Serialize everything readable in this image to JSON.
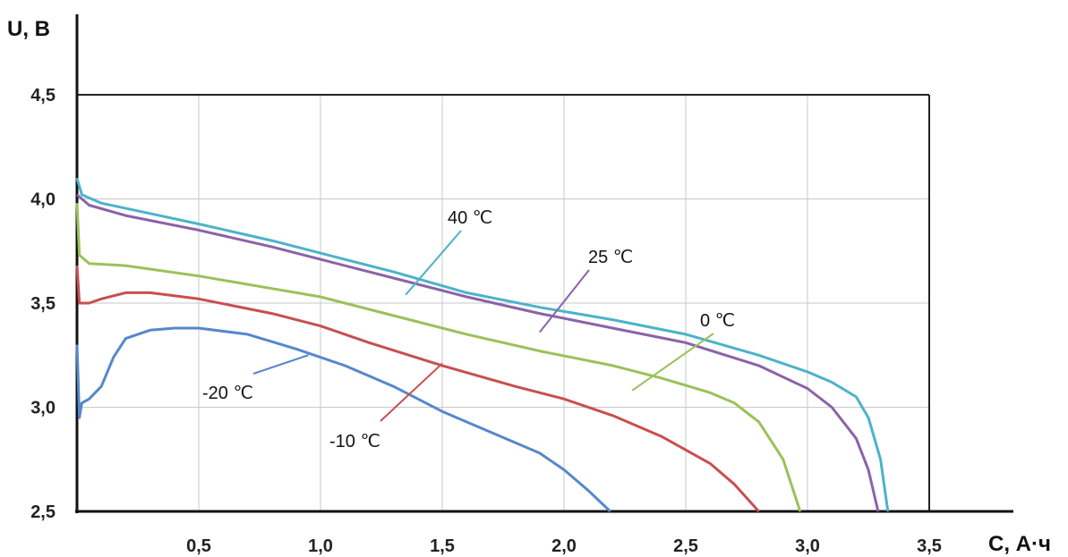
{
  "chart_data": {
    "type": "line",
    "xlabel": "C,  А·ч",
    "ylabel": "U, В",
    "xlim": [
      0,
      3.5
    ],
    "ylim": [
      2.5,
      4.5
    ],
    "x_ticks": [
      "0,5",
      "1,0",
      "1,5",
      "2,0",
      "2,5",
      "3,0",
      "3,5"
    ],
    "y_ticks": [
      "2,5",
      "3,0",
      "3,5",
      "4,0",
      "4,5"
    ],
    "grid": true,
    "series": [
      {
        "name": "40 ℃",
        "color": "#4bb3c9",
        "points": [
          [
            0,
            4.1
          ],
          [
            0.02,
            4.02
          ],
          [
            0.1,
            3.98
          ],
          [
            0.3,
            3.93
          ],
          [
            0.5,
            3.88
          ],
          [
            0.8,
            3.8
          ],
          [
            1.0,
            3.74
          ],
          [
            1.3,
            3.65
          ],
          [
            1.6,
            3.55
          ],
          [
            1.9,
            3.48
          ],
          [
            2.2,
            3.42
          ],
          [
            2.5,
            3.35
          ],
          [
            2.8,
            3.25
          ],
          [
            3.0,
            3.17
          ],
          [
            3.1,
            3.12
          ],
          [
            3.2,
            3.05
          ],
          [
            3.25,
            2.95
          ],
          [
            3.3,
            2.75
          ],
          [
            3.33,
            2.5
          ]
        ],
        "label_anchor": [
          1.35,
          3.54
        ]
      },
      {
        "name": "25 ℃",
        "color": "#8a63a8",
        "points": [
          [
            0,
            4.02
          ],
          [
            0.05,
            3.97
          ],
          [
            0.2,
            3.92
          ],
          [
            0.5,
            3.85
          ],
          [
            0.8,
            3.77
          ],
          [
            1.0,
            3.71
          ],
          [
            1.3,
            3.62
          ],
          [
            1.6,
            3.53
          ],
          [
            1.9,
            3.45
          ],
          [
            2.2,
            3.38
          ],
          [
            2.5,
            3.31
          ],
          [
            2.8,
            3.2
          ],
          [
            3.0,
            3.09
          ],
          [
            3.1,
            3.0
          ],
          [
            3.2,
            2.85
          ],
          [
            3.25,
            2.7
          ],
          [
            3.29,
            2.5
          ]
        ],
        "label_anchor": [
          1.9,
          3.36
        ]
      },
      {
        "name": "0 ℃",
        "color": "#9bc15a",
        "points": [
          [
            0,
            3.98
          ],
          [
            0.01,
            3.73
          ],
          [
            0.05,
            3.69
          ],
          [
            0.2,
            3.68
          ],
          [
            0.5,
            3.63
          ],
          [
            0.8,
            3.57
          ],
          [
            1.0,
            3.53
          ],
          [
            1.3,
            3.44
          ],
          [
            1.6,
            3.35
          ],
          [
            1.9,
            3.27
          ],
          [
            2.2,
            3.2
          ],
          [
            2.4,
            3.14
          ],
          [
            2.6,
            3.07
          ],
          [
            2.7,
            3.02
          ],
          [
            2.8,
            2.93
          ],
          [
            2.9,
            2.75
          ],
          [
            2.97,
            2.5
          ]
        ],
        "label_anchor": [
          2.28,
          3.08
        ]
      },
      {
        "name": "-10 ℃",
        "color": "#c84f4f",
        "points": [
          [
            0,
            3.68
          ],
          [
            0.01,
            3.5
          ],
          [
            0.05,
            3.5
          ],
          [
            0.1,
            3.52
          ],
          [
            0.2,
            3.55
          ],
          [
            0.3,
            3.55
          ],
          [
            0.5,
            3.52
          ],
          [
            0.8,
            3.45
          ],
          [
            1.0,
            3.39
          ],
          [
            1.2,
            3.31
          ],
          [
            1.5,
            3.2
          ],
          [
            1.8,
            3.1
          ],
          [
            2.0,
            3.04
          ],
          [
            2.2,
            2.96
          ],
          [
            2.4,
            2.86
          ],
          [
            2.6,
            2.73
          ],
          [
            2.7,
            2.63
          ],
          [
            2.8,
            2.5
          ]
        ],
        "label_anchor": [
          1.5,
          3.21
        ]
      },
      {
        "name": "-20 ℃",
        "color": "#5588cc",
        "points": [
          [
            0,
            3.3
          ],
          [
            0.01,
            2.95
          ],
          [
            0.02,
            3.02
          ],
          [
            0.05,
            3.04
          ],
          [
            0.1,
            3.1
          ],
          [
            0.15,
            3.24
          ],
          [
            0.2,
            3.33
          ],
          [
            0.3,
            3.37
          ],
          [
            0.4,
            3.38
          ],
          [
            0.5,
            3.38
          ],
          [
            0.7,
            3.35
          ],
          [
            0.9,
            3.28
          ],
          [
            1.1,
            3.2
          ],
          [
            1.3,
            3.1
          ],
          [
            1.5,
            2.98
          ],
          [
            1.7,
            2.88
          ],
          [
            1.9,
            2.78
          ],
          [
            2.0,
            2.7
          ],
          [
            2.1,
            2.6
          ],
          [
            2.19,
            2.5
          ]
        ],
        "label_anchor": [
          0.95,
          3.25
        ]
      }
    ]
  }
}
